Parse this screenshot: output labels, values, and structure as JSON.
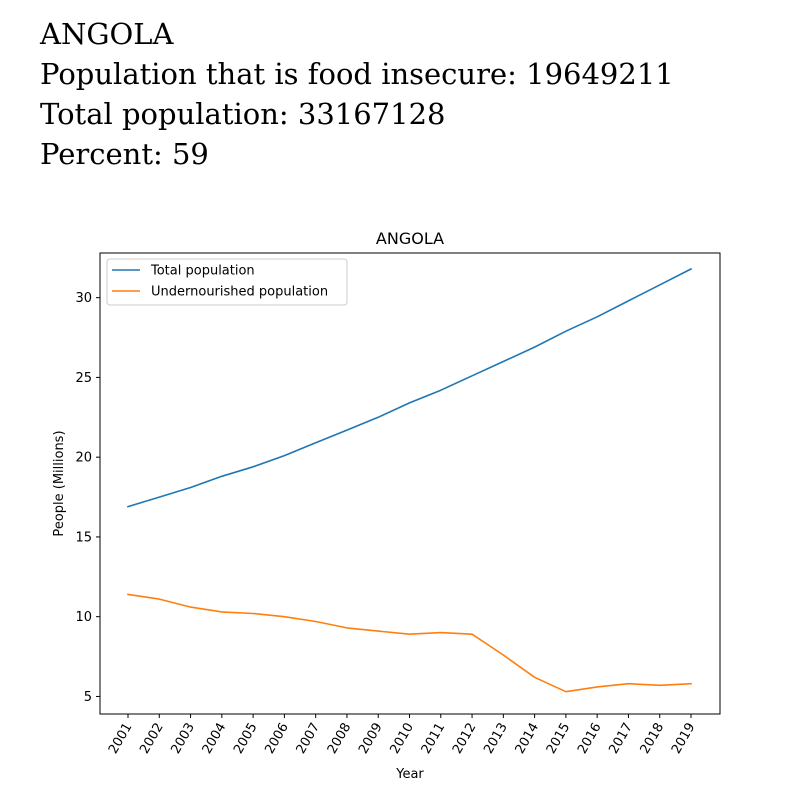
{
  "header": {
    "country": "ANGOLA",
    "food_insecure_line": "Population that is food insecure: 19649211",
    "total_population_line": "Total population: 33167128",
    "percent_line": "Percent: 59"
  },
  "chart_data": {
    "type": "line",
    "title": "ANGOLA",
    "xlabel": "Year",
    "ylabel": "People (Millions)",
    "categories": [
      "2001",
      "2002",
      "2003",
      "2004",
      "2005",
      "2006",
      "2007",
      "2008",
      "2009",
      "2010",
      "2011",
      "2012",
      "2013",
      "2014",
      "2015",
      "2016",
      "2017",
      "2018",
      "2019"
    ],
    "yticks": [
      5,
      10,
      15,
      20,
      25,
      30
    ],
    "ylim": [
      3.9,
      32.8
    ],
    "legend_position": "upper-left",
    "series": [
      {
        "name": "Total population",
        "color": "#1f77b4",
        "values": [
          16.9,
          17.5,
          18.1,
          18.8,
          19.4,
          20.1,
          20.9,
          21.7,
          22.5,
          23.4,
          24.2,
          25.1,
          26.0,
          26.9,
          27.9,
          28.8,
          29.8,
          30.8,
          31.8
        ]
      },
      {
        "name": "Undernourished population",
        "color": "#ff7f0e",
        "values": [
          11.4,
          11.1,
          10.6,
          10.3,
          10.2,
          10.0,
          9.7,
          9.3,
          9.1,
          8.9,
          9.0,
          8.9,
          7.6,
          6.2,
          5.3,
          5.6,
          5.8,
          5.7,
          5.8
        ]
      }
    ]
  }
}
